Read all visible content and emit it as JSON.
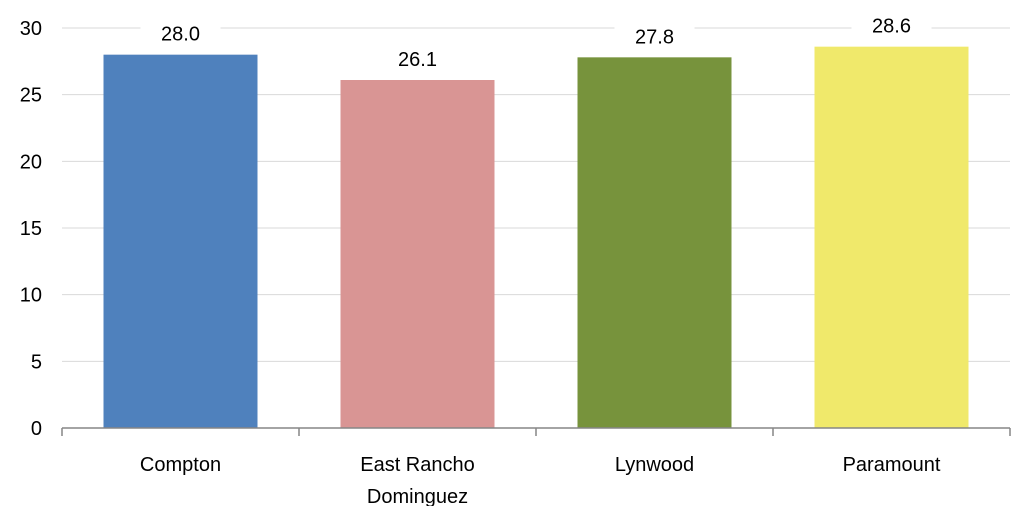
{
  "chart_data": {
    "type": "bar",
    "title": "",
    "xlabel": "",
    "ylabel": "",
    "categories": [
      "Compton",
      "East Rancho Dominguez",
      "Lynwood",
      "Paramount"
    ],
    "category_lines": [
      [
        "Compton"
      ],
      [
        "East Rancho",
        "Dominguez"
      ],
      [
        "Lynwood"
      ],
      [
        "Paramount"
      ]
    ],
    "values": [
      28.0,
      26.1,
      27.8,
      28.6
    ],
    "value_labels": [
      "28.0",
      "26.1",
      "27.8",
      "28.6"
    ],
    "bar_colors": [
      "#4f81bd",
      "#d99594",
      "#77933c",
      "#f0e96b"
    ],
    "ylim": [
      0,
      30
    ],
    "yticks": [
      0,
      5,
      10,
      15,
      20,
      25,
      30
    ],
    "grid": true,
    "gridline_color": "#d9d9d9",
    "axis_color": "#868686",
    "legend": "none"
  }
}
